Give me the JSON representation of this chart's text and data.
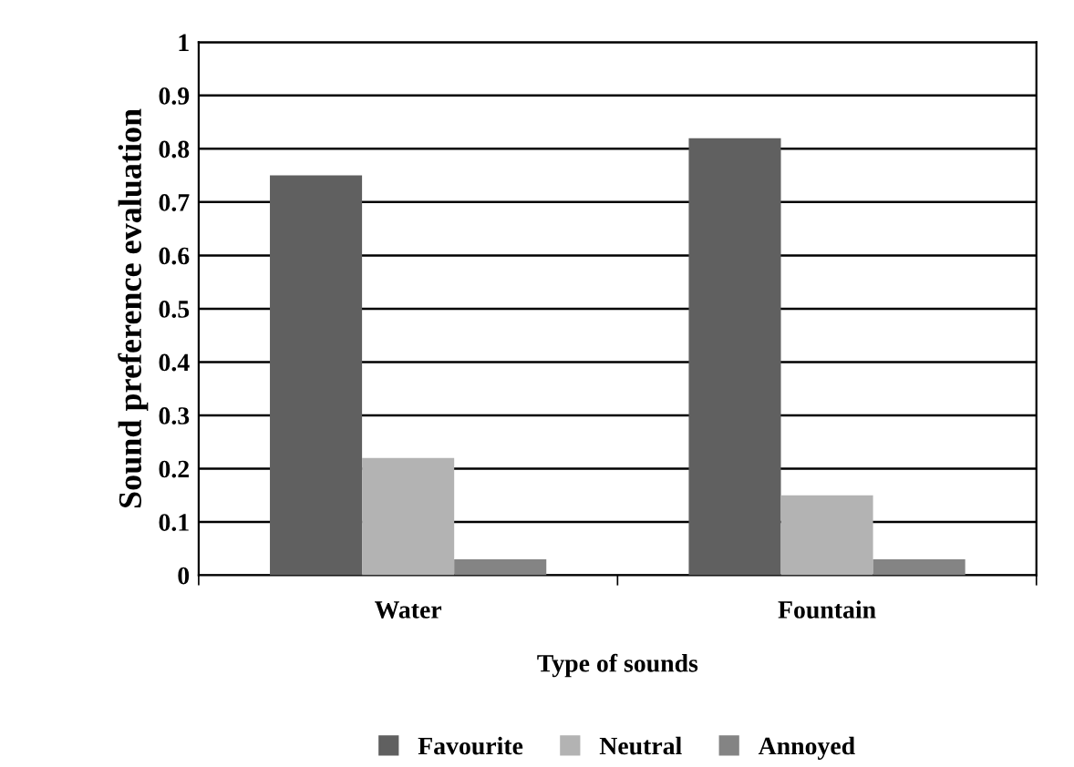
{
  "chart_data": {
    "type": "bar",
    "xlabel": "Type of sounds",
    "ylabel": "Sound preference evaluation",
    "categories": [
      "Water",
      "Fountain"
    ],
    "series": [
      {
        "name": "Favourite",
        "color": "#606060",
        "values": [
          0.75,
          0.82
        ]
      },
      {
        "name": "Neutral",
        "color": "#b3b3b3",
        "values": [
          0.22,
          0.15
        ]
      },
      {
        "name": "Annoyed",
        "color": "#848484",
        "values": [
          0.03,
          0.03
        ]
      }
    ],
    "ylim": [
      0,
      1
    ],
    "yticks": [
      0,
      0.1,
      0.2,
      0.3,
      0.4,
      0.5,
      0.6,
      0.7,
      0.8,
      0.9,
      1
    ],
    "grid": "y",
    "legend": "bottom"
  }
}
